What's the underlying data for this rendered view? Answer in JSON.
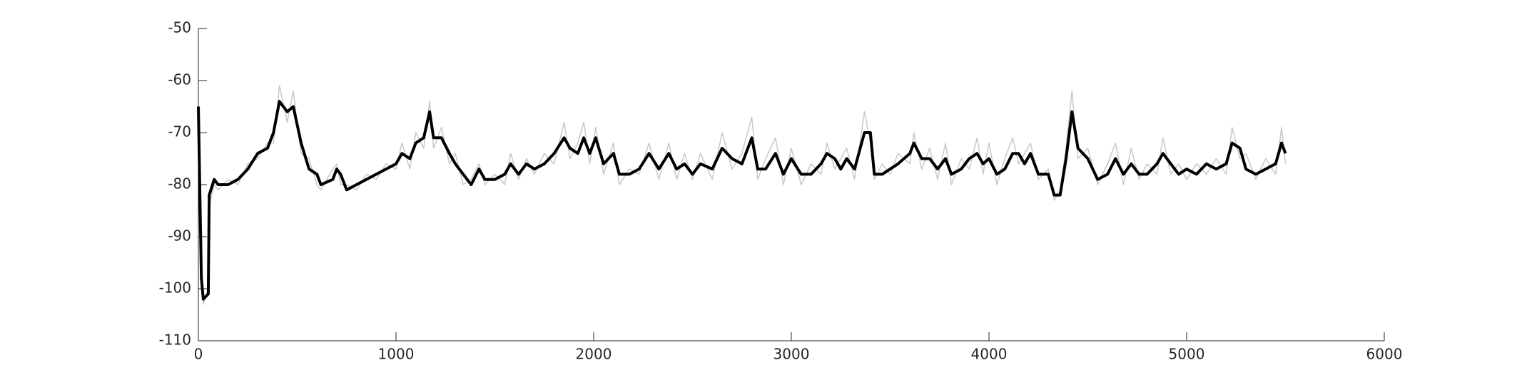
{
  "chart_data": {
    "type": "line",
    "x": [
      0,
      15,
      25,
      50,
      55,
      80,
      100,
      150,
      200,
      250,
      300,
      350,
      380,
      410,
      450,
      480,
      520,
      560,
      600,
      620,
      680,
      700,
      720,
      750,
      800,
      850,
      900,
      950,
      1000,
      1030,
      1070,
      1100,
      1140,
      1170,
      1190,
      1230,
      1270,
      1300,
      1340,
      1380,
      1420,
      1450,
      1500,
      1550,
      1580,
      1620,
      1660,
      1700,
      1750,
      1800,
      1850,
      1880,
      1920,
      1950,
      1980,
      2010,
      2050,
      2100,
      2130,
      2180,
      2230,
      2280,
      2330,
      2380,
      2420,
      2460,
      2500,
      2540,
      2600,
      2650,
      2700,
      2750,
      2800,
      2830,
      2870,
      2920,
      2960,
      3000,
      3050,
      3100,
      3150,
      3180,
      3220,
      3250,
      3280,
      3320,
      3370,
      3400,
      3420,
      3460,
      3500,
      3540,
      3600,
      3620,
      3660,
      3700,
      3740,
      3780,
      3810,
      3860,
      3900,
      3940,
      3970,
      4000,
      4040,
      4080,
      4120,
      4150,
      4180,
      4210,
      4250,
      4300,
      4330,
      4360,
      4390,
      4420,
      4450,
      4500,
      4550,
      4600,
      4640,
      4680,
      4720,
      4760,
      4800,
      4850,
      4880,
      4920,
      4960,
      5000,
      5050,
      5100,
      5150,
      5200,
      5230,
      5270,
      5300,
      5350,
      5400,
      5450,
      5480,
      5500
    ],
    "series": [
      {
        "color": "#c8c8c8",
        "values": [
          -66,
          -96,
          -103,
          -100,
          -84,
          -80,
          -81,
          -79,
          -80,
          -76,
          -75,
          -72,
          -72,
          -61,
          -68,
          -62,
          -74,
          -75,
          -80,
          -81,
          -77,
          -76,
          -80,
          -80,
          -81,
          -78,
          -79,
          -76,
          -77,
          -72,
          -77,
          -70,
          -73,
          -64,
          -73,
          -69,
          -76,
          -74,
          -80,
          -79,
          -76,
          -80,
          -78,
          -80,
          -74,
          -79,
          -75,
          -78,
          -74,
          -76,
          -68,
          -75,
          -72,
          -68,
          -76,
          -69,
          -78,
          -72,
          -80,
          -77,
          -78,
          -72,
          -79,
          -72,
          -79,
          -74,
          -79,
          -74,
          -79,
          -70,
          -77,
          -74,
          -67,
          -79,
          -75,
          -71,
          -80,
          -73,
          -80,
          -76,
          -78,
          -72,
          -77,
          -75,
          -73,
          -79,
          -66,
          -72,
          -79,
          -76,
          -78,
          -74,
          -76,
          -70,
          -77,
          -73,
          -79,
          -72,
          -80,
          -75,
          -77,
          -71,
          -78,
          -72,
          -80,
          -75,
          -71,
          -76,
          -74,
          -72,
          -79,
          -77,
          -83,
          -81,
          -73,
          -62,
          -75,
          -73,
          -80,
          -76,
          -72,
          -80,
          -73,
          -79,
          -76,
          -78,
          -71,
          -78,
          -76,
          -79,
          -76,
          -78,
          -75,
          -78,
          -69,
          -75,
          -74,
          -79,
          -75,
          -78,
          -69,
          -76
        ]
      },
      {
        "color": "#000000",
        "values": [
          -65,
          -98,
          -102,
          -101,
          -82,
          -79,
          -80,
          -80,
          -79,
          -77,
          -74,
          -73,
          -70,
          -64,
          -66,
          -65,
          -72,
          -77,
          -78,
          -80,
          -79,
          -77,
          -78,
          -81,
          -80,
          -79,
          -78,
          -77,
          -76,
          -74,
          -75,
          -72,
          -71,
          -66,
          -71,
          -71,
          -74,
          -76,
          -78,
          -80,
          -77,
          -79,
          -79,
          -78,
          -76,
          -78,
          -76,
          -77,
          -76,
          -74,
          -71,
          -73,
          -74,
          -71,
          -74,
          -71,
          -76,
          -74,
          -78,
          -78,
          -77,
          -74,
          -77,
          -74,
          -77,
          -76,
          -78,
          -76,
          -77,
          -73,
          -75,
          -76,
          -71,
          -77,
          -77,
          -74,
          -78,
          -75,
          -78,
          -78,
          -76,
          -74,
          -75,
          -77,
          -75,
          -77,
          -70,
          -70,
          -78,
          -78,
          -77,
          -76,
          -74,
          -72,
          -75,
          -75,
          -77,
          -75,
          -78,
          -77,
          -75,
          -74,
          -76,
          -75,
          -78,
          -77,
          -74,
          -74,
          -76,
          -74,
          -78,
          -78,
          -82,
          -82,
          -75,
          -66,
          -73,
          -75,
          -79,
          -78,
          -75,
          -78,
          -76,
          -78,
          -78,
          -76,
          -74,
          -76,
          -78,
          -77,
          -78,
          -76,
          -77,
          -76,
          -72,
          -73,
          -77,
          -78,
          -77,
          -76,
          -72,
          -74
        ]
      }
    ],
    "xlim": [
      0,
      6000
    ],
    "xticks": [
      0,
      1000,
      2000,
      3000,
      4000,
      5000,
      6000
    ],
    "ylim": [
      -110,
      -50
    ],
    "yticks": [
      -110,
      -100,
      -90,
      -80,
      -70,
      -60,
      -50
    ]
  }
}
